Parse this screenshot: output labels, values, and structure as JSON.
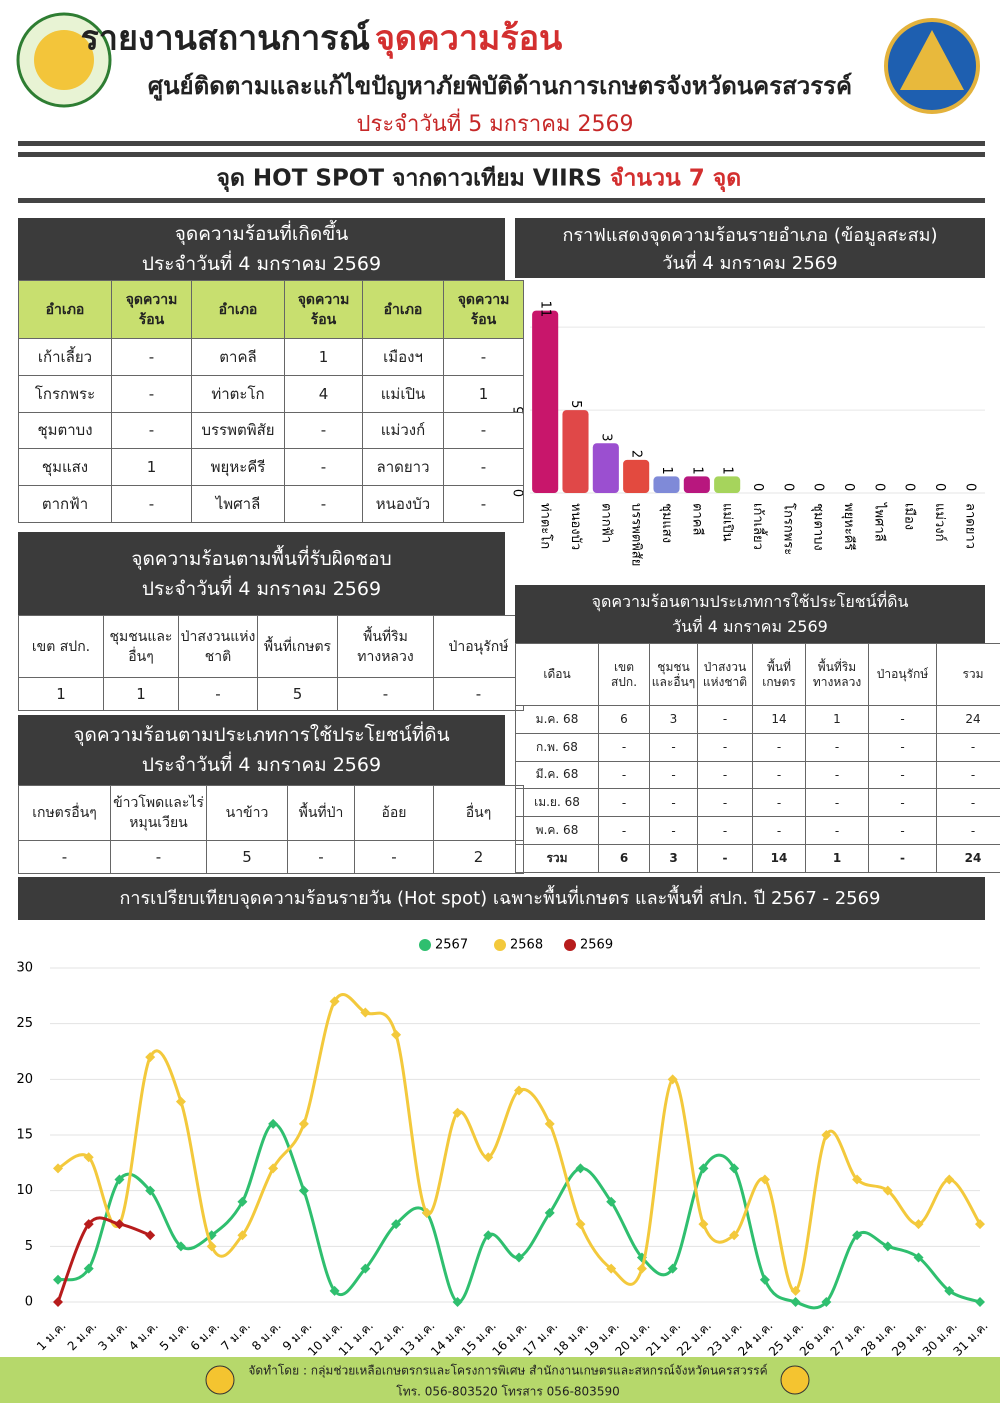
{
  "header": {
    "title": "รายงานสถานการณ์",
    "title_highlight": "จุดความร้อน",
    "subtitle": "ศูนย์ติดตามและแก้ไขปัญหาภัยพิบัติด้านการเกษตรจังหวัดนครสวรรค์",
    "date": "ประจำวันที่ 5 มกราคม 2569"
  },
  "banner": {
    "text": "จุด HOT SPOT จากดาวเทียม VIIRS",
    "highlight": "จำนวน 7 จุด"
  },
  "district_table": {
    "title": "จุดความร้อนที่เกิดขึ้น",
    "subtitle": "ประจำวันที่ 4 มกราคม 2569",
    "columns": [
      "อำเภอ",
      "จุดความร้อน",
      "อำเภอ",
      "จุดความร้อน",
      "อำเภอ",
      "จุดความร้อน"
    ],
    "rows": [
      [
        "เก้าเลี้ยว",
        "-",
        "ตาคลี",
        1,
        "เมืองฯ",
        "-"
      ],
      [
        "โกรกพระ",
        "-",
        "ท่าตะโก",
        4,
        "แม่เปิน",
        1
      ],
      [
        "ชุมตาบง",
        "-",
        "บรรพตพิสัย",
        "-",
        "แม่วงก์",
        "-"
      ],
      [
        "ชุมแสง",
        1,
        "พยุหะคีรี",
        "-",
        "ลาดยาว",
        "-"
      ],
      [
        "ตากฟ้า",
        "-",
        "ไพศาลี",
        "-",
        "หนองบัว",
        "-"
      ]
    ]
  },
  "bar_chart": {
    "type": "bar",
    "title": "กราฟแสดงจุดความร้อนรายอำเภอ (ข้อมูลสะสม)",
    "subtitle": "วันที่ 4 มกราคม 2569",
    "categories": [
      "ท่าตะโก",
      "หนองบัว",
      "ตากฟ้า",
      "บรรพตพิสัย",
      "ชุมแสง",
      "ตาคลี",
      "แม่เปิน",
      "เก้าเลี้ยว",
      "โกรกพระ",
      "ชุมตาบง",
      "พยุหะคีรี",
      "ไพศาลี",
      "เมือง",
      "แม่วงก์",
      "ลาดยาว"
    ],
    "values": [
      11,
      5,
      3,
      2,
      1,
      1,
      1,
      0,
      0,
      0,
      0,
      0,
      0,
      0,
      0
    ],
    "colors": [
      "#c8166b",
      "#e04848",
      "#9b4fd0",
      "#e34a3f",
      "#7f8ad8",
      "#b8177e",
      "#a6d45c",
      "#888888",
      "#888888",
      "#888888",
      "#888888",
      "#888888",
      "#888888",
      "#888888",
      "#888888"
    ],
    "ylim": [
      0,
      12
    ],
    "yticks": [
      0,
      5,
      10
    ],
    "grid": true
  },
  "area_table": {
    "title": "จุดความร้อนตามพื้นที่รับผิดชอบ",
    "subtitle": "ประจำวันที่ 4 มกราคม 2569",
    "columns": [
      "เขต สปก.",
      "ชุมชนและอื่นๆ",
      "ป่าสงวนแห่งชาติ",
      "พื้นที่เกษตร",
      "พื้นที่ริมทางหลวง",
      "ป่าอนุรักษ์"
    ],
    "rows": [
      [
        1,
        1,
        "-",
        5,
        "-",
        "-"
      ]
    ]
  },
  "landuse_table": {
    "title": "จุดความร้อนตามประเภทการใช้ประโยชน์ที่ดิน",
    "subtitle": "ประจำวันที่ 4 มกราคม 2569",
    "columns": [
      "เกษตรอื่นๆ",
      "ข้าวโพดและไร่หมุนเวียน",
      "นาข้าว",
      "พื้นที่ป่า",
      "อ้อย",
      "อื่นๆ"
    ],
    "rows": [
      [
        "-",
        "-",
        5,
        "-",
        "-",
        2
      ]
    ]
  },
  "monthly_table": {
    "title": "จุดความร้อนตามประเภทการใช้ประโยชน์ที่ดิน",
    "subtitle": "วันที่ 4 มกราคม  2569",
    "columns": [
      "เดือน",
      "เขต สปก.",
      "ชุมชนและอื่นๆ",
      "ป่าสงวนแห่งชาติ",
      "พื้นที่เกษตร",
      "พื้นที่ริมทางหลวง",
      "ป่าอนุรักษ์",
      "รวม"
    ],
    "rows": [
      [
        "ม.ค. 68",
        6,
        3,
        "-",
        14,
        1,
        "-",
        24
      ],
      [
        "ก.พ. 68",
        "-",
        "-",
        "-",
        "-",
        "-",
        "-",
        "-"
      ],
      [
        "มี.ค. 68",
        "-",
        "-",
        "-",
        "-",
        "-",
        "-",
        "-"
      ],
      [
        "เม.ย. 68",
        "-",
        "-",
        "-",
        "-",
        "-",
        "-",
        "-"
      ],
      [
        "พ.ค. 68",
        "-",
        "-",
        "-",
        "-",
        "-",
        "-",
        "-"
      ],
      [
        "รวม",
        6,
        3,
        "-",
        14,
        1,
        "-",
        24
      ]
    ]
  },
  "line_chart": {
    "type": "line",
    "title": "การเปรียบเทียบจุดความร้อนรายวัน (Hot spot)  เฉพาะพื้นที่เกษตร และพื้นที่ สปก. ปี 2567 - 2569",
    "categories": [
      "1 ม.ค.",
      "2 ม.ค.",
      "3 ม.ค.",
      "4 ม.ค.",
      "5 ม.ค.",
      "6 ม.ค.",
      "7 ม.ค.",
      "8 ม.ค.",
      "9 ม.ค.",
      "10 ม.ค.",
      "11 ม.ค.",
      "12 ม.ค.",
      "13 ม.ค.",
      "14 ม.ค.",
      "15 ม.ค.",
      "16 ม.ค.",
      "17 ม.ค.",
      "18 ม.ค.",
      "19 ม.ค.",
      "20 ม.ค.",
      "21 ม.ค.",
      "22 ม.ค.",
      "23 ม.ค.",
      "24 ม.ค.",
      "25 ม.ค.",
      "26 ม.ค.",
      "27 ม.ค.",
      "28 ม.ค.",
      "29 ม.ค.",
      "30 ม.ค.",
      "31 ม.ค."
    ],
    "series": [
      {
        "name": "2567",
        "color": "#2fbf6f",
        "values": [
          2,
          3,
          11,
          10,
          5,
          6,
          9,
          16,
          10,
          1,
          3,
          7,
          8,
          0,
          6,
          4,
          8,
          12,
          9,
          4,
          3,
          12,
          12,
          2,
          0,
          0,
          6,
          5,
          4,
          1,
          0
        ]
      },
      {
        "name": "2568",
        "color": "#f3c93c",
        "values": [
          12,
          13,
          7,
          22,
          18,
          5,
          6,
          12,
          16,
          27,
          26,
          24,
          8,
          17,
          13,
          19,
          16,
          7,
          3,
          3,
          20,
          7,
          6,
          11,
          1,
          15,
          11,
          10,
          7,
          11,
          7
        ]
      },
      {
        "name": "2569",
        "color": "#b71c1c",
        "values": [
          0,
          7,
          7,
          6,
          null,
          null,
          null,
          null,
          null,
          null,
          null,
          null,
          null,
          null,
          null,
          null,
          null,
          null,
          null,
          null,
          null,
          null,
          null,
          null,
          null,
          null,
          null,
          null,
          null,
          null,
          null
        ]
      }
    ],
    "ylim": [
      0,
      30
    ],
    "yticks": [
      0,
      5,
      10,
      15,
      20,
      25,
      30
    ],
    "grid": true,
    "legend": "top"
  },
  "footer": {
    "credit": "จัดทำโดย : กลุ่มช่วยเหลือเกษตรกรและโครงการพิเศษ สำนักงานเกษตรและสหกรณ์จังหวัดนครสวรรค์",
    "phone": "โทร. 056-803520 โทรสาร 056-803590"
  }
}
